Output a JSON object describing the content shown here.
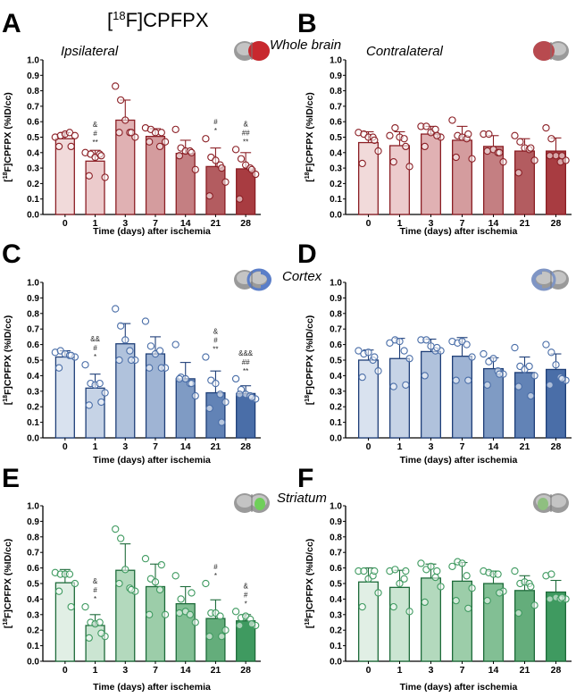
{
  "figure_title": "[18F]CPFPX",
  "chart_data": [
    {
      "type": "bar",
      "panel": "A",
      "region": "Whole brain",
      "side": "Ipsilateral",
      "title": "Ipsilateral",
      "xlabel": "Time (days) after ischemia",
      "ylabel": "[18F]CPFPX (%ID/cc)",
      "ylim": [
        0,
        1.0
      ],
      "yticks": [
        "0.0",
        "0.1",
        "0.2",
        "0.3",
        "0.4",
        "0.5",
        "0.6",
        "0.7",
        "0.8",
        "0.9",
        "1.0"
      ],
      "categories": [
        "0",
        "1",
        "3",
        "7",
        "14",
        "21",
        "28"
      ],
      "values": [
        0.49,
        0.345,
        0.61,
        0.505,
        0.395,
        0.31,
        0.295
      ],
      "errors": [
        0.04,
        0.07,
        0.13,
        0.05,
        0.085,
        0.12,
        0.105
      ],
      "points": [
        [
          0.5,
          0.51,
          0.52,
          0.53,
          0.51,
          0.44,
          0.44
        ],
        [
          0.4,
          0.39,
          0.37,
          0.39,
          0.24,
          0.25,
          0.38
        ],
        [
          0.83,
          0.74,
          0.61,
          0.53,
          0.5,
          0.53,
          0.53
        ],
        [
          0.56,
          0.55,
          0.53,
          0.44,
          0.47,
          0.47,
          0.53
        ],
        [
          0.55,
          0.43,
          0.41,
          0.41,
          0.29,
          0.38,
          0.4
        ],
        [
          0.49,
          0.37,
          0.35,
          0.32,
          0.21,
          0.12,
          0.3
        ],
        [
          0.42,
          0.36,
          0.32,
          0.3,
          0.26,
          0.1,
          0.29
        ]
      ],
      "significance": [
        "",
        "&\n#\n**",
        "",
        "",
        "",
        "#\n*",
        "&\n##\n**"
      ],
      "palette": {
        "fill": [
          "#f1dada",
          "#eccbcc",
          "#e0b1b3",
          "#d49c9e",
          "#c47f82",
          "#b35c60",
          "#a83c41"
        ],
        "stroke": "#8b1f25",
        "point": "#8b1f25"
      }
    },
    {
      "type": "bar",
      "panel": "B",
      "region": "Whole brain",
      "side": "Contralateral",
      "title": "Contralateral",
      "xlabel": "Time (days) after ischemia",
      "ylabel": "[18F]CPFPX (%ID/cc)",
      "ylim": [
        0,
        1.0
      ],
      "yticks": [
        "0.0",
        "0.1",
        "0.2",
        "0.3",
        "0.4",
        "0.5",
        "0.6",
        "0.7",
        "0.8",
        "0.9",
        "1.0"
      ],
      "categories": [
        "0",
        "1",
        "3",
        "7",
        "14",
        "21",
        "28"
      ],
      "values": [
        0.465,
        0.445,
        0.52,
        0.48,
        0.44,
        0.41,
        0.41
      ],
      "errors": [
        0.07,
        0.09,
        0.05,
        0.09,
        0.07,
        0.08,
        0.085
      ],
      "points": [
        [
          0.53,
          0.52,
          0.5,
          0.5,
          0.41,
          0.33,
          0.48
        ],
        [
          0.51,
          0.56,
          0.5,
          0.49,
          0.31,
          0.34,
          0.44
        ],
        [
          0.57,
          0.57,
          0.53,
          0.55,
          0.5,
          0.44,
          0.51
        ],
        [
          0.61,
          0.51,
          0.5,
          0.49,
          0.36,
          0.37,
          0.52
        ],
        [
          0.52,
          0.52,
          0.42,
          0.4,
          0.34,
          0.41,
          0.4
        ],
        [
          0.51,
          0.47,
          0.43,
          0.42,
          0.35,
          0.27,
          0.43
        ],
        [
          0.56,
          0.49,
          0.38,
          0.34,
          0.35,
          0.38,
          0.38
        ]
      ],
      "significance": [
        "",
        "",
        "",
        "",
        "",
        "",
        ""
      ],
      "palette": {
        "fill": [
          "#f1dada",
          "#eccbcc",
          "#e0b1b3",
          "#d49c9e",
          "#c47f82",
          "#b35c60",
          "#a83c41"
        ],
        "stroke": "#8b1f25",
        "point": "#8b1f25"
      }
    },
    {
      "type": "bar",
      "panel": "C",
      "region": "Cortex",
      "side": "Ipsilateral",
      "title": "",
      "xlabel": "Time (days) after ischemia",
      "ylabel": "[18F]CPFPX (%ID/cc)",
      "ylim": [
        0,
        1.0
      ],
      "yticks": [
        "0.0",
        "0.1",
        "0.2",
        "0.3",
        "0.4",
        "0.5",
        "0.6",
        "0.7",
        "0.8",
        "0.9",
        "1.0"
      ],
      "categories": [
        "0",
        "1",
        "3",
        "7",
        "14",
        "21",
        "28"
      ],
      "values": [
        0.52,
        0.32,
        0.605,
        0.54,
        0.38,
        0.29,
        0.285
      ],
      "errors": [
        0.04,
        0.09,
        0.13,
        0.11,
        0.105,
        0.14,
        0.05
      ],
      "points": [
        [
          0.55,
          0.56,
          0.54,
          0.53,
          0.52,
          0.45,
          0.53
        ],
        [
          0.47,
          0.35,
          0.34,
          0.35,
          0.29,
          0.21,
          0.23
        ],
        [
          0.83,
          0.72,
          0.63,
          0.56,
          0.5,
          0.5,
          0.5
        ],
        [
          0.75,
          0.59,
          0.54,
          0.56,
          0.45,
          0.45,
          0.45
        ],
        [
          0.6,
          0.39,
          0.38,
          0.35,
          0.27,
          0.38,
          0.35
        ],
        [
          0.52,
          0.37,
          0.35,
          0.28,
          0.23,
          0.19,
          0.1
        ],
        [
          0.38,
          0.31,
          0.28,
          0.27,
          0.25,
          0.28,
          0.26
        ]
      ],
      "significance": [
        "",
        "&&\n#\n*",
        "",
        "",
        "",
        "&\n#\n**",
        "&&&\n##\n**"
      ],
      "palette": {
        "fill": [
          "#d9e2ef",
          "#c6d3e6",
          "#b0c2dc",
          "#9fb4d4",
          "#7f9bc4",
          "#6283b6",
          "#4a6ea8"
        ],
        "stroke": "#1f3f78",
        "point": "#4a6ea8"
      }
    },
    {
      "type": "bar",
      "panel": "D",
      "region": "Cortex",
      "side": "Contralateral",
      "title": "",
      "xlabel": "Time (days) after ischemia",
      "ylabel": "[18F]CPFPX (%ID/cc)",
      "ylim": [
        0,
        1.0
      ],
      "yticks": [
        "0.0",
        "0.1",
        "0.2",
        "0.3",
        "0.4",
        "0.5",
        "0.6",
        "0.7",
        "0.8",
        "0.9",
        "1.0"
      ],
      "categories": [
        "0",
        "1",
        "3",
        "7",
        "14",
        "21",
        "28"
      ],
      "values": [
        0.5,
        0.51,
        0.555,
        0.525,
        0.445,
        0.42,
        0.44
      ],
      "errors": [
        0.065,
        0.13,
        0.08,
        0.12,
        0.07,
        0.1,
        0.1
      ],
      "points": [
        [
          0.56,
          0.54,
          0.55,
          0.5,
          0.43,
          0.39,
          0.52
        ],
        [
          0.61,
          0.63,
          0.62,
          0.56,
          0.51,
          0.33,
          0.34
        ],
        [
          0.63,
          0.63,
          0.59,
          0.56,
          0.56,
          0.4,
          0.58
        ],
        [
          0.62,
          0.61,
          0.62,
          0.6,
          0.52,
          0.37,
          0.37
        ],
        [
          0.54,
          0.49,
          0.51,
          0.43,
          0.41,
          0.34,
          0.41
        ],
        [
          0.58,
          0.46,
          0.44,
          0.46,
          0.4,
          0.33,
          0.27
        ],
        [
          0.6,
          0.55,
          0.47,
          0.39,
          0.37,
          0.34,
          0.38
        ]
      ],
      "significance": [
        "",
        "",
        "",
        "",
        "",
        "",
        ""
      ],
      "palette": {
        "fill": [
          "#d9e2ef",
          "#c6d3e6",
          "#b0c2dc",
          "#9fb4d4",
          "#7f9bc4",
          "#6283b6",
          "#4a6ea8"
        ],
        "stroke": "#1f3f78",
        "point": "#4a6ea8"
      }
    },
    {
      "type": "bar",
      "panel": "E",
      "region": "Striatum",
      "side": "Ipsilateral",
      "title": "",
      "xlabel": "Time (days) after ischemia",
      "ylabel": "[18F]CPFPX (%ID/cc)",
      "ylim": [
        0,
        1.0
      ],
      "yticks": [
        "0.0",
        "0.1",
        "0.2",
        "0.3",
        "0.4",
        "0.5",
        "0.6",
        "0.7",
        "0.8",
        "0.9",
        "1.0"
      ],
      "categories": [
        "0",
        "1",
        "3",
        "7",
        "14",
        "21",
        "28"
      ],
      "values": [
        0.505,
        0.23,
        0.585,
        0.48,
        0.37,
        0.275,
        0.26
      ],
      "errors": [
        0.085,
        0.07,
        0.17,
        0.145,
        0.11,
        0.12,
        0.04
      ],
      "points": [
        [
          0.57,
          0.56,
          0.56,
          0.56,
          0.5,
          0.45,
          0.35
        ],
        [
          0.35,
          0.25,
          0.24,
          0.25,
          0.16,
          0.15,
          0.18
        ],
        [
          0.85,
          0.79,
          0.59,
          0.47,
          0.45,
          0.5,
          0.46
        ],
        [
          0.66,
          0.53,
          0.51,
          0.46,
          0.3,
          0.3,
          0.62
        ],
        [
          0.55,
          0.4,
          0.32,
          0.3,
          0.25,
          0.31,
          0.44
        ],
        [
          0.5,
          0.31,
          0.31,
          0.29,
          0.2,
          0.16,
          0.16
        ],
        [
          0.32,
          0.28,
          0.29,
          0.27,
          0.23,
          0.23,
          0.24
        ]
      ],
      "significance": [
        "",
        "&\n#\n*",
        "",
        "",
        "",
        "#\n*",
        "&\n#\n*"
      ],
      "palette": {
        "fill": [
          "#e1efe5",
          "#cbe5d2",
          "#b3d9bd",
          "#9ccda9",
          "#82bf94",
          "#64ad7b",
          "#3f9a60"
        ],
        "stroke": "#1e6b3a",
        "point": "#3f9a60"
      }
    },
    {
      "type": "bar",
      "panel": "F",
      "region": "Striatum",
      "side": "Contralateral",
      "title": "",
      "xlabel": "Time (days) after ischemia",
      "ylabel": "[18F]CPFPX (%ID/cc)",
      "ylim": [
        0,
        1.0
      ],
      "yticks": [
        "0.0",
        "0.1",
        "0.2",
        "0.3",
        "0.4",
        "0.5",
        "0.6",
        "0.7",
        "0.8",
        "0.9",
        "1.0"
      ],
      "categories": [
        "0",
        "1",
        "3",
        "7",
        "14",
        "21",
        "28"
      ],
      "values": [
        0.51,
        0.475,
        0.535,
        0.515,
        0.5,
        0.455,
        0.445
      ],
      "errors": [
        0.09,
        0.11,
        0.09,
        0.12,
        0.08,
        0.095,
        0.075
      ],
      "points": [
        [
          0.58,
          0.58,
          0.53,
          0.55,
          0.44,
          0.35,
          0.58
        ],
        [
          0.58,
          0.59,
          0.5,
          0.53,
          0.32,
          0.35,
          0.58
        ],
        [
          0.63,
          0.59,
          0.61,
          0.54,
          0.48,
          0.38,
          0.58
        ],
        [
          0.61,
          0.64,
          0.63,
          0.55,
          0.47,
          0.39,
          0.34
        ],
        [
          0.58,
          0.57,
          0.56,
          0.56,
          0.45,
          0.39,
          0.44
        ],
        [
          0.58,
          0.5,
          0.51,
          0.5,
          0.36,
          0.31,
          0.48
        ],
        [
          0.55,
          0.56,
          0.41,
          0.4,
          0.4,
          0.4,
          0.41
        ]
      ],
      "significance": [
        "",
        "",
        "",
        "",
        "",
        "",
        ""
      ],
      "palette": {
        "fill": [
          "#e1efe5",
          "#cbe5d2",
          "#b3d9bd",
          "#9ccda9",
          "#82bf94",
          "#64ad7b",
          "#3f9a60"
        ],
        "stroke": "#1e6b3a",
        "point": "#3f9a60"
      }
    }
  ],
  "panel_labels": [
    "A",
    "B",
    "C",
    "D",
    "E",
    "F"
  ],
  "region_labels": [
    "Whole brain",
    "Cortex",
    "Striatum"
  ],
  "highlight_colors": {
    "whole_brain": "#c8282e",
    "cortex": "#5b7ec8",
    "striatum": "#6fcf5a"
  }
}
